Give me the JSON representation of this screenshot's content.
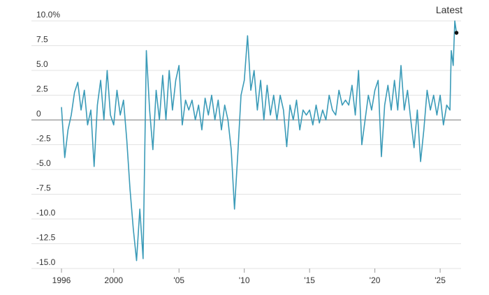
{
  "chart_data": {
    "type": "line",
    "annotation": "Latest",
    "x": [
      1996,
      1996.25,
      1996.5,
      1996.75,
      1997,
      1997.25,
      1997.5,
      1997.75,
      1998,
      1998.25,
      1998.5,
      1998.75,
      1999,
      1999.25,
      1999.5,
      1999.75,
      2000,
      2000.25,
      2000.5,
      2000.75,
      2001,
      2001.25,
      2001.5,
      2001.75,
      2002,
      2002.25,
      2002.5,
      2002.75,
      2003,
      2003.25,
      2003.5,
      2003.75,
      2004,
      2004.25,
      2004.5,
      2004.75,
      2005,
      2005.25,
      2005.5,
      2005.75,
      2006,
      2006.25,
      2006.5,
      2006.75,
      2007,
      2007.25,
      2007.5,
      2007.75,
      2008,
      2008.25,
      2008.5,
      2008.75,
      2009,
      2009.25,
      2009.5,
      2009.75,
      2010,
      2010.25,
      2010.5,
      2010.75,
      2011,
      2011.25,
      2011.5,
      2011.75,
      2012,
      2012.25,
      2012.5,
      2012.75,
      2013,
      2013.25,
      2013.5,
      2013.75,
      2014,
      2014.25,
      2014.5,
      2014.75,
      2015,
      2015.25,
      2015.5,
      2015.75,
      2016,
      2016.25,
      2016.5,
      2016.75,
      2017,
      2017.25,
      2017.5,
      2017.75,
      2018,
      2018.25,
      2018.5,
      2018.75,
      2019,
      2019.25,
      2019.5,
      2019.75,
      2020,
      2020.25,
      2020.5,
      2020.75,
      2021,
      2021.25,
      2021.5,
      2021.75,
      2022,
      2022.25,
      2022.5,
      2022.75,
      2023,
      2023.25,
      2023.5,
      2023.75,
      2024,
      2024.25,
      2024.5,
      2024.75,
      2025,
      2025.25,
      2025.5,
      2025.75,
      2025.85,
      2026,
      2026.12,
      2026.25
    ],
    "series": [
      {
        "color": "#3b9bb8",
        "values": [
          1.3,
          -3.8,
          -1,
          0.5,
          2.8,
          3.8,
          1,
          3,
          -0.5,
          1,
          -4.7,
          1.5,
          4,
          0,
          5,
          0.5,
          -0.5,
          3,
          0.5,
          2,
          -2,
          -7,
          -11,
          -14.2,
          -9,
          -14,
          7,
          1,
          -3,
          3,
          0,
          4.5,
          0,
          5,
          1,
          4,
          5.5,
          -0.5,
          2,
          1,
          2,
          0,
          1.5,
          -1,
          2.2,
          0.5,
          2.5,
          0,
          2,
          -1,
          1.5,
          0,
          -3,
          -9,
          -3.5,
          2.5,
          4,
          8.5,
          3,
          5,
          1,
          4,
          0,
          3.5,
          0.5,
          2.5,
          0,
          2.5,
          1,
          -2.7,
          1.5,
          0,
          2,
          -1,
          1,
          0.5,
          1,
          -0.5,
          1.5,
          -0.3,
          1,
          0,
          2.5,
          1,
          0.5,
          3,
          1.5,
          2,
          1.5,
          3.5,
          0.5,
          5,
          -2.5,
          0,
          2.5,
          1,
          3,
          4,
          -3.7,
          1.5,
          3.5,
          1,
          4,
          1,
          5.5,
          1,
          3,
          0,
          -2.8,
          1,
          -4.2,
          -1,
          3,
          1,
          2.5,
          0.5,
          2.5,
          -0.5,
          1.5,
          1,
          7,
          5.5,
          10,
          8.8
        ]
      }
    ],
    "xlim": [
      1993.7,
      2026.6
    ],
    "xticks": [
      1996,
      2000,
      {
        "value": 2005,
        "label": "'05"
      },
      {
        "value": 2010,
        "label": "'10"
      },
      {
        "value": 2015,
        "label": "'15"
      },
      {
        "value": 2020,
        "label": "'20"
      },
      {
        "value": 2025,
        "label": "'25"
      }
    ],
    "ylim": [
      -15,
      10
    ],
    "yticks": [
      {
        "value": 10,
        "label": "10.0%"
      },
      7.5,
      {
        "value": 5,
        "label": "5.0"
      },
      2.5,
      0,
      -2.5,
      {
        "value": -5,
        "label": "-5.0"
      },
      -7.5,
      {
        "value": -10,
        "label": "-10.0"
      },
      -12.5,
      {
        "value": -15,
        "label": "-15.0"
      }
    ],
    "grid": true
  }
}
